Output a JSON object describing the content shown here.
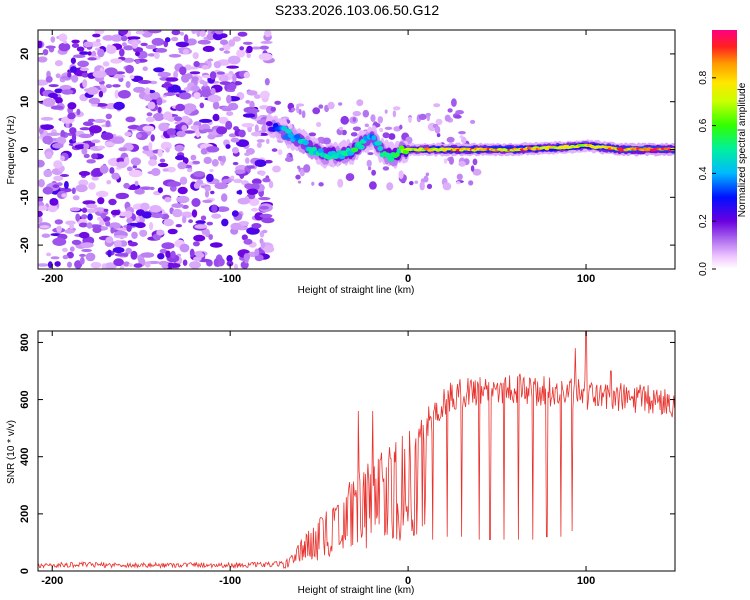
{
  "chart_data": [
    {
      "type": "heatmap",
      "title": "S233.2026.103.06.50.G12",
      "xlabel": "Height of straight line (km)",
      "ylabel": "Frequency (Hz)",
      "xlim": [
        -208,
        150
      ],
      "ylim": [
        -25,
        25
      ],
      "xticks": [
        -200,
        -100,
        0,
        100
      ],
      "xtick_labels": [
        "-200",
        "-100",
        "0",
        "100"
      ],
      "yticks": [
        -20,
        -10,
        0,
        10,
        20
      ],
      "ytick_labels": [
        "-20",
        "-10",
        "0",
        "10",
        "20"
      ],
      "colorbar": {
        "label": "Normalized spectral amplitude",
        "range": [
          0,
          1
        ],
        "ticks": [
          0.0,
          0.2,
          0.4,
          0.6,
          0.8
        ],
        "tick_labels": [
          "0.0",
          "0.2",
          "0.4",
          "0.6",
          "0.8"
        ]
      },
      "noise_region_x": [
        -208,
        -78
      ],
      "ridge": {
        "x": [
          -78,
          -72,
          -66,
          -60,
          -54,
          -48,
          -42,
          -36,
          -30,
          -24,
          -20,
          -16,
          -12,
          -8,
          -4,
          0,
          10,
          30,
          60,
          90,
          100,
          120,
          150
        ],
        "frequency": [
          5,
          4,
          3,
          1.5,
          0,
          -1,
          -1,
          -1,
          0,
          2,
          3,
          0,
          -1,
          -1.5,
          -0.5,
          0,
          0,
          0,
          0,
          0.5,
          0.8,
          0,
          0
        ],
        "amplitude": [
          0.25,
          0.4,
          0.45,
          0.45,
          0.5,
          0.5,
          0.55,
          0.5,
          0.55,
          0.45,
          0.45,
          0.45,
          0.55,
          0.55,
          0.6,
          0.7,
          0.85,
          0.9,
          0.9,
          0.85,
          0.8,
          0.95,
          0.95
        ]
      }
    },
    {
      "type": "line",
      "xlabel": "Height of straight line (km)",
      "ylabel": "SNR (10 * v/v)",
      "xlim": [
        -208,
        150
      ],
      "ylim": [
        0,
        840
      ],
      "xticks": [
        -200,
        -100,
        0,
        100
      ],
      "xtick_labels": [
        "-200",
        "-100",
        "0",
        "100"
      ],
      "yticks": [
        0,
        200,
        400,
        600,
        800
      ],
      "ytick_labels": [
        "0",
        "200",
        "400",
        "600",
        "800"
      ],
      "color": "#e8322d",
      "series": [
        {
          "name": "SNR",
          "x": [
            -208,
            -180,
            -150,
            -120,
            -100,
            -80,
            -70,
            -65,
            -60,
            -55,
            -50,
            -45,
            -40,
            -35,
            -30,
            -25,
            -20,
            -15,
            -10,
            -5,
            0,
            5,
            10,
            15,
            20,
            25,
            30,
            35,
            40,
            50,
            60,
            70,
            80,
            90,
            100,
            110,
            120,
            130,
            140,
            150
          ],
          "values": [
            20,
            22,
            20,
            22,
            20,
            22,
            25,
            50,
            90,
            120,
            150,
            180,
            200,
            240,
            270,
            300,
            320,
            340,
            370,
            400,
            430,
            470,
            510,
            550,
            590,
            610,
            620,
            630,
            635,
            640,
            640,
            630,
            625,
            620,
            615,
            610,
            605,
            600,
            595,
            590
          ],
          "dropouts": [
            {
              "x": -28,
              "value": 560
            },
            {
              "x": -20,
              "value": 560
            },
            {
              "x": 2,
              "value": 140
            },
            {
              "x": 14,
              "value": 110
            },
            {
              "x": 22,
              "value": 120
            },
            {
              "x": 30,
              "value": 120
            },
            {
              "x": 40,
              "value": 110
            },
            {
              "x": 46,
              "value": 110
            },
            {
              "x": 54,
              "value": 110
            },
            {
              "x": 62,
              "value": 110
            },
            {
              "x": 70,
              "value": 110
            },
            {
              "x": 78,
              "value": 120
            },
            {
              "x": 86,
              "value": 120
            },
            {
              "x": 92,
              "value": 140
            }
          ],
          "spikes": [
            {
              "x": 100,
              "value": 840
            },
            {
              "x": 94,
              "value": 780
            },
            {
              "x": 114,
              "value": 700
            }
          ]
        }
      ]
    }
  ]
}
